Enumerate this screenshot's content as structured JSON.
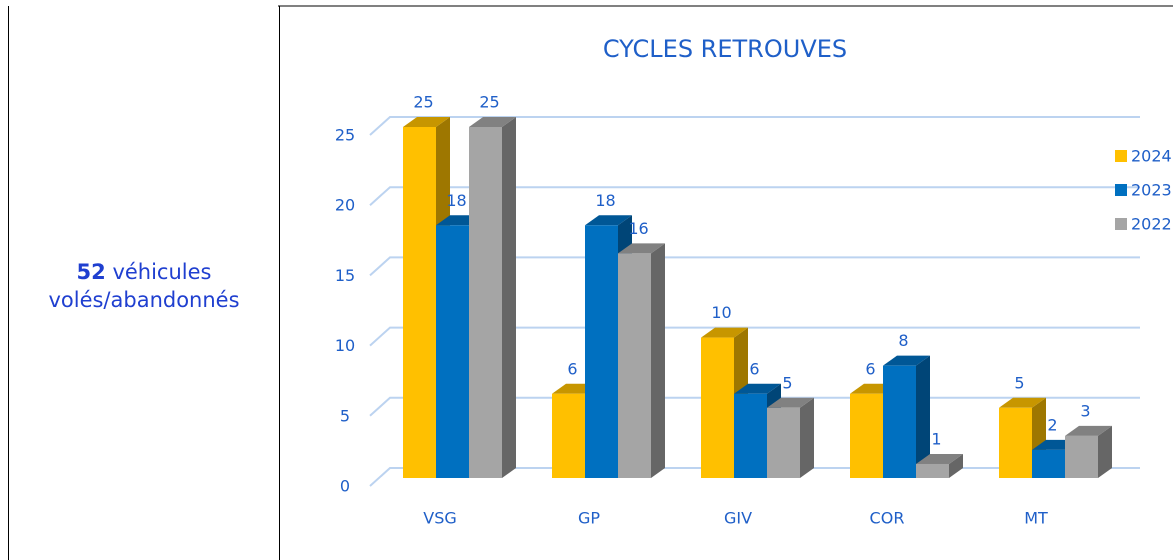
{
  "summary": {
    "count": 52,
    "text_1": "véhicules",
    "text_2": "volés/abandonnés"
  },
  "chart_data": {
    "type": "bar",
    "title": "CYCLES RETROUVES",
    "categories": [
      "VSG",
      "GP",
      "GIV",
      "COR",
      "MT"
    ],
    "series": [
      {
        "name": "2024",
        "color": "#ffc000",
        "values": [
          25,
          6,
          10,
          6,
          5
        ]
      },
      {
        "name": "2023",
        "color": "#0070c0",
        "values": [
          18,
          18,
          6,
          8,
          2
        ]
      },
      {
        "name": "2022",
        "color": "#a5a5a5",
        "values": [
          25,
          16,
          5,
          1,
          3
        ]
      }
    ],
    "ylim": [
      0,
      25
    ],
    "yticks": [
      0,
      5,
      10,
      15,
      20,
      25
    ],
    "grid": true,
    "legend": "right"
  }
}
